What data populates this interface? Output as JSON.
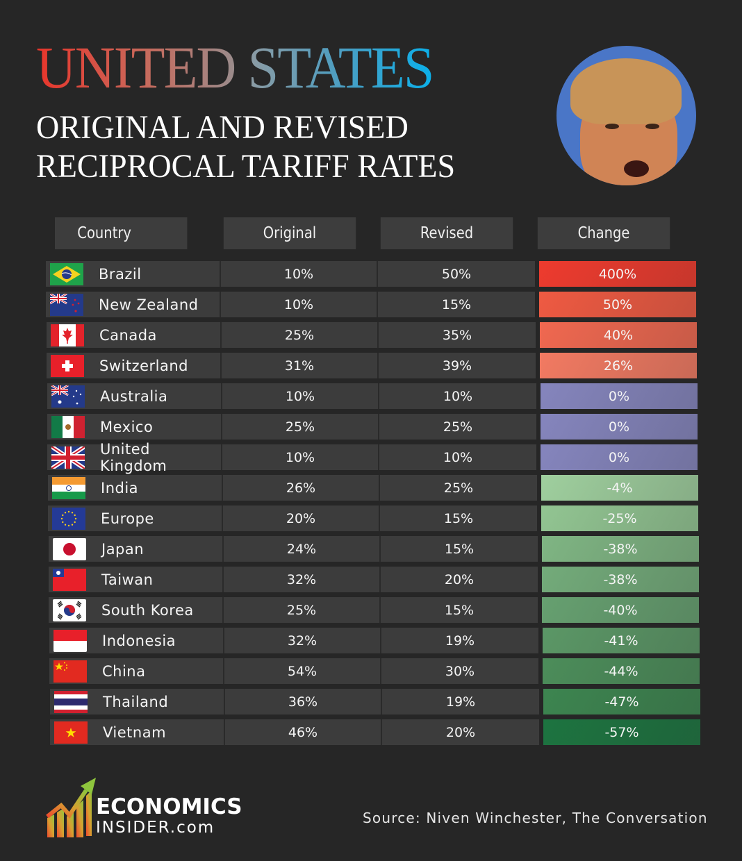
{
  "header": {
    "title_word1": "UNITED",
    "title_word2": "STATES",
    "subtitle_line1": "ORIGINAL AND REVISED",
    "subtitle_line2": "RECIPROCAL TARIFF RATES"
  },
  "table": {
    "columns": [
      "Country",
      "Original",
      "Revised",
      "Change"
    ],
    "rows": [
      {
        "country": "Brazil",
        "flag": "brazil-flag",
        "original": "10%",
        "revised": "50%",
        "change": "400%",
        "change_color": "#ee3b2e"
      },
      {
        "country": "New Zealand",
        "flag": "new-zealand-flag",
        "original": "10%",
        "revised": "15%",
        "change": "50%",
        "change_color": "#ef5a42"
      },
      {
        "country": "Canada",
        "flag": "canada-flag",
        "original": "25%",
        "revised": "35%",
        "change": "40%",
        "change_color": "#f06850"
      },
      {
        "country": "Switzerland",
        "flag": "switzerland-flag",
        "original": "31%",
        "revised": "39%",
        "change": "26%",
        "change_color": "#f27a62"
      },
      {
        "country": "Australia",
        "flag": "australia-flag",
        "original": "10%",
        "revised": "10%",
        "change": "0%",
        "change_color": "#8585bd"
      },
      {
        "country": "Mexico",
        "flag": "mexico-flag",
        "original": "25%",
        "revised": "25%",
        "change": "0%",
        "change_color": "#8585bd"
      },
      {
        "country": "United Kingdom",
        "flag": "uk-flag",
        "original": "10%",
        "revised": "10%",
        "change": "0%",
        "change_color": "#8585bd"
      },
      {
        "country": "India",
        "flag": "india-flag",
        "original": "26%",
        "revised": "25%",
        "change": "-4%",
        "change_color": "#9fcf9e"
      },
      {
        "country": "Europe",
        "flag": "eu-flag",
        "original": "20%",
        "revised": "15%",
        "change": "-25%",
        "change_color": "#92c592"
      },
      {
        "country": "Japan",
        "flag": "japan-flag",
        "original": "24%",
        "revised": "15%",
        "change": "-38%",
        "change_color": "#7fb583"
      },
      {
        "country": "Taiwan",
        "flag": "taiwan-flag",
        "original": "32%",
        "revised": "20%",
        "change": "-38%",
        "change_color": "#73ab7a"
      },
      {
        "country": "South Korea",
        "flag": "south-korea-flag",
        "original": "25%",
        "revised": "15%",
        "change": "-40%",
        "change_color": "#66a070"
      },
      {
        "country": "Indonesia",
        "flag": "indonesia-flag",
        "original": "32%",
        "revised": "19%",
        "change": "-41%",
        "change_color": "#5b9766"
      },
      {
        "country": "China",
        "flag": "china-flag",
        "original": "54%",
        "revised": "30%",
        "change": "-44%",
        "change_color": "#4c8d5a"
      },
      {
        "country": "Thailand",
        "flag": "thailand-flag",
        "original": "36%",
        "revised": "19%",
        "change": "-47%",
        "change_color": "#3d8550"
      },
      {
        "country": "Vietnam",
        "flag": "vietnam-flag",
        "original": "46%",
        "revised": "20%",
        "change": "-57%",
        "change_color": "#1d7440"
      }
    ]
  },
  "footer": {
    "logo_line1": "ECONOMICS",
    "logo_line2": "INSIDER.com",
    "source": "Source: Niven Winchester, The Conversation"
  },
  "chart_data": {
    "type": "table",
    "title": "United States Original and Revised Reciprocal Tariff Rates",
    "columns": [
      "Country",
      "Original",
      "Revised",
      "Change"
    ],
    "rows": [
      [
        "Brazil",
        10,
        50,
        400
      ],
      [
        "New Zealand",
        10,
        15,
        50
      ],
      [
        "Canada",
        25,
        35,
        40
      ],
      [
        "Switzerland",
        31,
        39,
        26
      ],
      [
        "Australia",
        10,
        10,
        0
      ],
      [
        "Mexico",
        25,
        25,
        0
      ],
      [
        "United Kingdom",
        10,
        10,
        0
      ],
      [
        "India",
        26,
        25,
        -4
      ],
      [
        "Europe",
        20,
        15,
        -25
      ],
      [
        "Japan",
        24,
        15,
        -38
      ],
      [
        "Taiwan",
        32,
        20,
        -38
      ],
      [
        "South Korea",
        25,
        15,
        -40
      ],
      [
        "Indonesia",
        32,
        19,
        -41
      ],
      [
        "China",
        54,
        30,
        -44
      ],
      [
        "Thailand",
        36,
        19,
        -47
      ],
      [
        "Vietnam",
        46,
        20,
        -57
      ]
    ],
    "units": "%",
    "source": "Niven Winchester, The Conversation"
  }
}
